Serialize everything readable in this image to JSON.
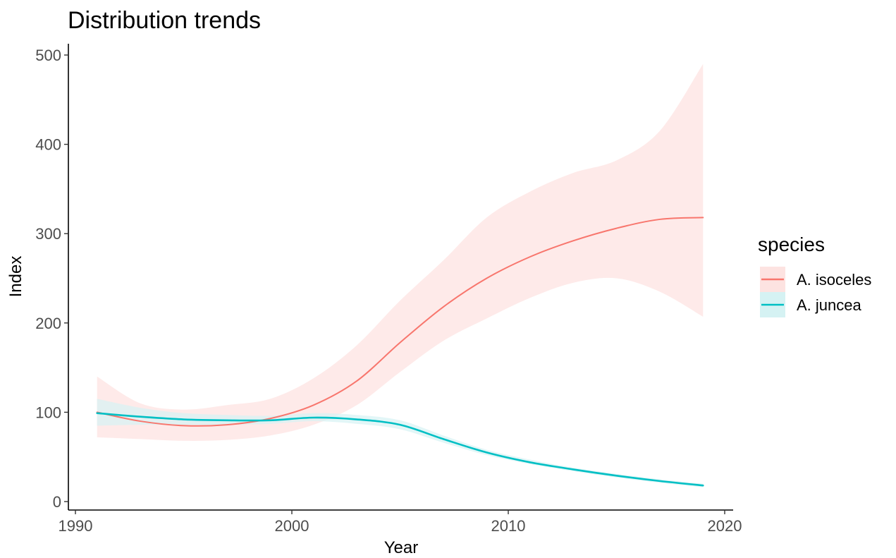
{
  "chart_data": {
    "type": "line",
    "title": "Distribution trends",
    "xlabel": "Year",
    "ylabel": "Index",
    "xlim": [
      1990,
      2020
    ],
    "ylim": [
      0,
      500
    ],
    "x_ticks": [
      1990,
      2000,
      2010,
      2020
    ],
    "y_ticks": [
      0,
      100,
      200,
      300,
      400,
      500
    ],
    "grid": false,
    "legend": {
      "title": "species",
      "placement": "right"
    },
    "x": [
      1991,
      1993,
      1995,
      1997,
      1999,
      2001,
      2003,
      2005,
      2007,
      2009,
      2011,
      2013,
      2015,
      2017,
      2019
    ],
    "series": [
      {
        "name": "A. isoceles",
        "color": "#F8766D",
        "band_color": "#FDE3E1",
        "values": [
          100,
          90,
          85,
          86,
          93,
          108,
          135,
          178,
          218,
          250,
          274,
          292,
          306,
          316,
          318
        ],
        "lower": [
          72,
          70,
          68,
          69,
          74,
          86,
          108,
          145,
          180,
          205,
          228,
          245,
          250,
          235,
          207
        ],
        "upper": [
          140,
          110,
          103,
          108,
          115,
          138,
          175,
          225,
          270,
          318,
          347,
          368,
          382,
          415,
          490
        ]
      },
      {
        "name": "A. juncea",
        "color": "#00BFC4",
        "band_color": "#D5F2F3",
        "values": [
          99,
          95,
          92,
          91,
          91,
          94,
          92,
          86,
          70,
          55,
          44,
          36,
          29,
          23,
          18
        ],
        "lower": [
          85,
          86,
          86,
          86,
          87,
          90,
          87,
          81,
          66,
          52,
          42,
          34,
          27,
          21,
          16
        ],
        "upper": [
          115,
          105,
          99,
          97,
          96,
          99,
          97,
          91,
          74,
          58,
          47,
          38,
          31,
          25,
          20
        ]
      }
    ]
  }
}
